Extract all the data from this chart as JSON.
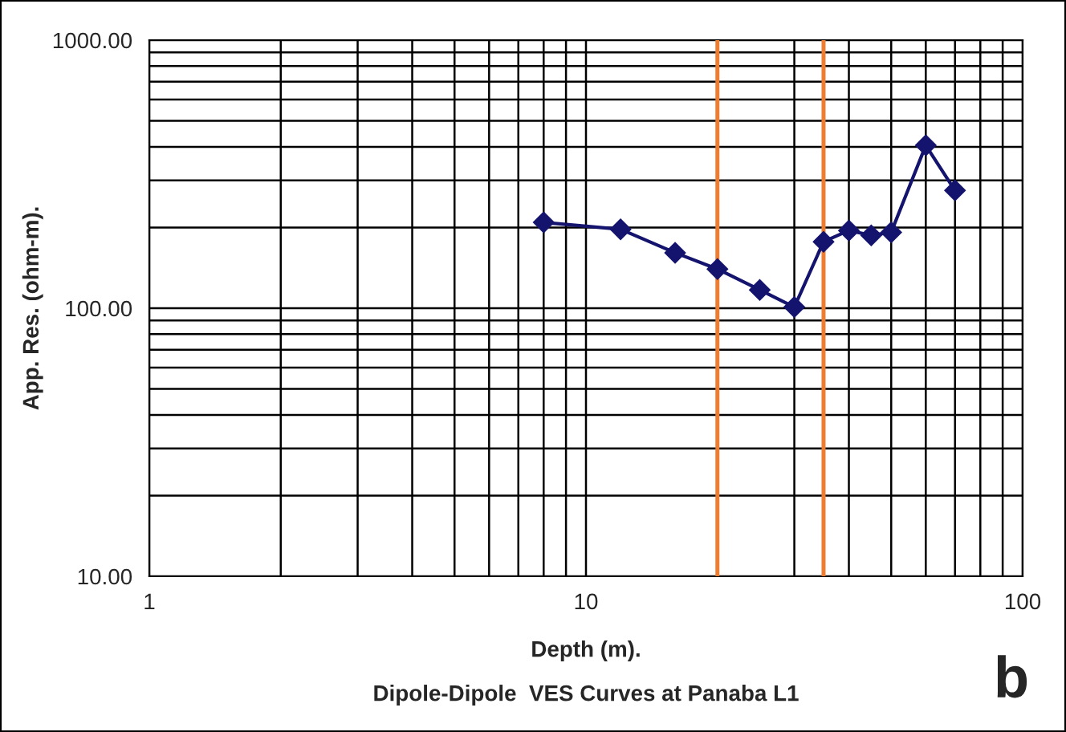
{
  "chart_data": {
    "type": "line",
    "xlabel": "Depth (m).",
    "ylabel": "App. Res. (ohm-m).",
    "x": [
      8,
      12,
      16,
      20,
      25,
      30,
      35,
      40,
      45,
      50,
      60,
      70
    ],
    "series": [
      {
        "color": "#14146e",
        "values": [
          209,
          197,
          161,
          140,
          117,
          101,
          177,
          195,
          187,
          192,
          405,
          275
        ]
      }
    ],
    "log": "xy",
    "xlim": [
      1,
      100
    ],
    "ylim": [
      10,
      1000
    ],
    "xticks": [
      1,
      10,
      100
    ],
    "yticks": [
      {
        "value": 10,
        "label": "10.00"
      },
      {
        "value": 100,
        "label": "100.00"
      },
      {
        "value": 1000,
        "label": "1000.00"
      }
    ],
    "grid": true,
    "marker": "diamond",
    "line_style": "solid",
    "ref_lines": [
      {
        "axis": "x",
        "value": 20,
        "color": "#ed7d31"
      },
      {
        "axis": "x",
        "value": 35,
        "color": "#ed7d31"
      }
    ],
    "annotations": [
      "Dipole-Dipole  VES Curves at Panaba L1",
      "b"
    ]
  }
}
